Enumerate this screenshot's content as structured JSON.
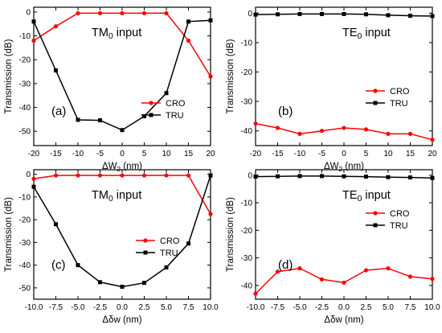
{
  "chart_data": [
    {
      "type": "line",
      "panel_label": "(a)",
      "annotation": "TM0 input",
      "xlabel": "ΔW2 (nm)",
      "ylabel": "Transmission (dB)",
      "xlim": [
        -20,
        20
      ],
      "ylim": [
        -56,
        2
      ],
      "x_ticks": [
        "-20",
        "-15",
        "-10",
        "-5",
        "0",
        "5",
        "10",
        "15",
        "20"
      ],
      "y_ticks": [
        "0",
        "-10",
        "-20",
        "-30",
        "-40",
        "-50"
      ],
      "grid": false,
      "legend_position": "lower-right",
      "x": [
        -20,
        -15,
        -10,
        -5,
        0,
        5,
        10,
        15,
        20
      ],
      "series": [
        {
          "name": "CRO",
          "color": "#ff0000",
          "marker": "circle",
          "values": [
            -12,
            -6,
            -0.5,
            -0.5,
            -0.5,
            -0.5,
            -0.5,
            -12,
            -27
          ]
        },
        {
          "name": "TRU",
          "color": "#000000",
          "marker": "square",
          "values": [
            -4,
            -24.5,
            -45.2,
            -45.4,
            -49.5,
            -43.7,
            -34,
            -4,
            -3.5
          ]
        }
      ]
    },
    {
      "type": "line",
      "panel_label": "(b)",
      "annotation": "TE0 input",
      "xlabel": "ΔW2 (nm)",
      "ylabel": "Transmission (dB)",
      "xlim": [
        -20,
        20
      ],
      "ylim": [
        -45,
        2
      ],
      "x_ticks": [
        "-20",
        "-15",
        "-10",
        "-5",
        "0",
        "5",
        "10",
        "15",
        "20"
      ],
      "y_ticks": [
        "0",
        "-10",
        "-20",
        "-30",
        "-40"
      ],
      "grid": false,
      "legend_position": "center-right",
      "x": [
        -20,
        -15,
        -10,
        -5,
        0,
        5,
        10,
        15,
        20
      ],
      "series": [
        {
          "name": "CRO",
          "color": "#ff0000",
          "marker": "circle",
          "values": [
            -37.5,
            -39,
            -41,
            -40,
            -39,
            -39.5,
            -41,
            -41,
            -43
          ]
        },
        {
          "name": "TRU",
          "color": "#000000",
          "marker": "square",
          "values": [
            -0.5,
            -0.4,
            -0.3,
            -0.3,
            -0.3,
            -0.4,
            -0.7,
            -0.9,
            -1
          ]
        }
      ]
    },
    {
      "type": "line",
      "panel_label": "(c)",
      "annotation": "TM0 input",
      "xlabel": "Δδw (nm)",
      "ylabel": "Transmission (dB)",
      "xlim": [
        -10,
        10
      ],
      "ylim": [
        -55,
        2
      ],
      "x_ticks": [
        "-10.0",
        "-7.5",
        "-5.0",
        "-2.5",
        "0.0",
        "2.5",
        "5.0",
        "7.5",
        "10.0"
      ],
      "y_ticks": [
        "0",
        "-10",
        "-20",
        "-30",
        "-40",
        "-50"
      ],
      "grid": false,
      "legend_position": "center-right",
      "x": [
        -10,
        -7.5,
        -5,
        -2.5,
        0,
        2.5,
        5,
        7.5,
        10
      ],
      "series": [
        {
          "name": "CRO",
          "color": "#ff0000",
          "marker": "circle",
          "values": [
            -2,
            -0.5,
            -0.5,
            -0.5,
            -0.5,
            -0.5,
            -0.5,
            -0.5,
            -17.5
          ]
        },
        {
          "name": "TRU",
          "color": "#000000",
          "marker": "square",
          "values": [
            -5.5,
            -22,
            -40,
            -47.5,
            -49.5,
            -47.8,
            -41,
            -30.5,
            -0.5
          ]
        }
      ]
    },
    {
      "type": "line",
      "panel_label": "(d)",
      "annotation": "TE0 input",
      "xlabel": "Δδw (nm)",
      "ylabel": "Transmission (dB)",
      "xlim": [
        -10,
        10
      ],
      "ylim": [
        -45,
        2
      ],
      "x_ticks": [
        "-10.0",
        "-7.5",
        "-5.0",
        "-2.5",
        "0.0",
        "2.5",
        "5.0",
        "7.5",
        "10.0"
      ],
      "y_ticks": [
        "0",
        "-10",
        "-20",
        "-30",
        "-40"
      ],
      "grid": false,
      "legend_position": "center-right",
      "x": [
        -10,
        -7.5,
        -5,
        -2.5,
        0,
        2.5,
        5,
        7.5,
        10
      ],
      "series": [
        {
          "name": "CRO",
          "color": "#ff0000",
          "marker": "circle",
          "values": [
            -43,
            -35,
            -33.8,
            -37.8,
            -39,
            -34.5,
            -33.8,
            -36.8,
            -37.6
          ]
        },
        {
          "name": "TRU",
          "color": "#000000",
          "marker": "square",
          "values": [
            -0.5,
            -0.4,
            -0.3,
            -0.3,
            -0.4,
            -0.5,
            -0.7,
            -0.8,
            -1
          ]
        }
      ]
    }
  ]
}
